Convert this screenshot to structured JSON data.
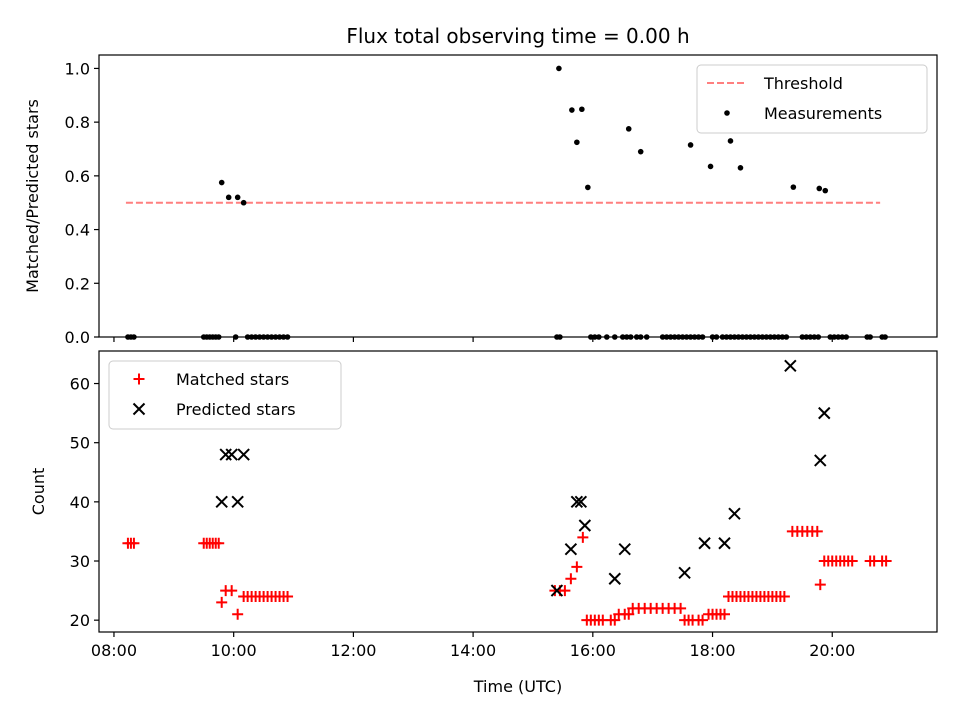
{
  "chart_data": [
    {
      "type": "scatter",
      "title": "Flux total observing time = 0.00 h",
      "xlabel": "",
      "ylabel": "Matched/Predicted stars",
      "xlim": [
        "07:45",
        "21:45"
      ],
      "ylim": [
        0,
        1.05
      ],
      "xticks": [
        "08:00",
        "10:00",
        "12:00",
        "14:00",
        "16:00",
        "18:00",
        "20:00"
      ],
      "yticks": [
        "0.0",
        "0.2",
        "0.4",
        "0.6",
        "0.8",
        "1.0"
      ],
      "show_x_tick_labels": false,
      "grid": false,
      "legend_position": "top-right",
      "series": [
        {
          "name": "Threshold",
          "kind": "line",
          "style": "dashed",
          "color": "#ff7f7f",
          "points": [
            [
              "08:12",
              0.5
            ],
            [
              "20:48",
              0.5
            ]
          ]
        },
        {
          "name": "Measurements",
          "kind": "points",
          "color": "#000000",
          "points": [
            [
              "08:14",
              0
            ],
            [
              "08:17",
              0
            ],
            [
              "08:20",
              0
            ],
            [
              "09:30",
              0
            ],
            [
              "09:33",
              0
            ],
            [
              "09:36",
              0
            ],
            [
              "09:39",
              0
            ],
            [
              "09:42",
              0
            ],
            [
              "09:45",
              0
            ],
            [
              "09:48",
              0.575
            ],
            [
              "09:55",
              0.52
            ],
            [
              "10:02",
              0
            ],
            [
              "10:04",
              0.52
            ],
            [
              "10:10",
              0.5
            ],
            [
              "10:14",
              0
            ],
            [
              "10:18",
              0
            ],
            [
              "10:22",
              0
            ],
            [
              "10:26",
              0
            ],
            [
              "10:30",
              0
            ],
            [
              "10:34",
              0
            ],
            [
              "10:38",
              0
            ],
            [
              "10:42",
              0
            ],
            [
              "10:46",
              0
            ],
            [
              "10:50",
              0
            ],
            [
              "10:54",
              0
            ],
            [
              "15:24",
              0
            ],
            [
              "15:27",
              0
            ],
            [
              "15:26",
              1.0
            ],
            [
              "15:39",
              0.845
            ],
            [
              "15:44",
              0.725
            ],
            [
              "15:49",
              0.848
            ],
            [
              "15:55",
              0.557
            ],
            [
              "15:58",
              0
            ],
            [
              "16:02",
              0
            ],
            [
              "16:06",
              0
            ],
            [
              "16:14",
              0
            ],
            [
              "16:22",
              0
            ],
            [
              "16:30",
              0
            ],
            [
              "16:34",
              0
            ],
            [
              "16:38",
              0
            ],
            [
              "16:44",
              0
            ],
            [
              "16:48",
              0
            ],
            [
              "16:54",
              0
            ],
            [
              "16:36",
              0.775
            ],
            [
              "16:48",
              0.69
            ],
            [
              "17:10",
              0
            ],
            [
              "17:14",
              0
            ],
            [
              "17:18",
              0
            ],
            [
              "17:22",
              0
            ],
            [
              "17:26",
              0
            ],
            [
              "17:30",
              0
            ],
            [
              "17:34",
              0
            ],
            [
              "17:38",
              0
            ],
            [
              "17:42",
              0
            ],
            [
              "17:46",
              0
            ],
            [
              "17:50",
              0
            ],
            [
              "17:38",
              0.715
            ],
            [
              "17:58",
              0.635
            ],
            [
              "18:00",
              0
            ],
            [
              "18:04",
              0
            ],
            [
              "18:10",
              0
            ],
            [
              "18:14",
              0
            ],
            [
              "18:18",
              0
            ],
            [
              "18:22",
              0
            ],
            [
              "18:26",
              0
            ],
            [
              "18:30",
              0
            ],
            [
              "18:34",
              0
            ],
            [
              "18:38",
              0
            ],
            [
              "18:42",
              0
            ],
            [
              "18:46",
              0
            ],
            [
              "18:50",
              0
            ],
            [
              "18:54",
              0
            ],
            [
              "18:58",
              0
            ],
            [
              "19:02",
              0
            ],
            [
              "19:06",
              0
            ],
            [
              "19:10",
              0
            ],
            [
              "19:14",
              0
            ],
            [
              "18:18",
              0.73
            ],
            [
              "18:28",
              0.63
            ],
            [
              "19:30",
              0
            ],
            [
              "19:34",
              0
            ],
            [
              "19:38",
              0
            ],
            [
              "19:42",
              0
            ],
            [
              "19:46",
              0
            ],
            [
              "19:21",
              0.558
            ],
            [
              "19:47",
              0.553
            ],
            [
              "19:53",
              0.545
            ],
            [
              "19:58",
              0
            ],
            [
              "20:02",
              0
            ],
            [
              "20:06",
              0
            ],
            [
              "20:10",
              0
            ],
            [
              "20:14",
              0
            ],
            [
              "20:35",
              0
            ],
            [
              "20:38",
              0
            ],
            [
              "20:50",
              0
            ],
            [
              "20:53",
              0
            ]
          ]
        }
      ]
    },
    {
      "type": "scatter",
      "title": "",
      "xlabel": "Time (UTC)",
      "ylabel": "Count",
      "xlim": [
        "07:45",
        "21:45"
      ],
      "ylim": [
        18,
        65.5
      ],
      "xticks": [
        "08:00",
        "10:00",
        "12:00",
        "14:00",
        "16:00",
        "18:00",
        "20:00"
      ],
      "yticks": [
        "20",
        "30",
        "40",
        "50",
        "60"
      ],
      "show_x_tick_labels": true,
      "grid": false,
      "legend_position": "top-left",
      "series": [
        {
          "name": "Matched stars",
          "kind": "plus",
          "color": "#ff0000",
          "points": [
            [
              "08:14",
              33
            ],
            [
              "08:17",
              33
            ],
            [
              "08:20",
              33
            ],
            [
              "09:30",
              33
            ],
            [
              "09:33",
              33
            ],
            [
              "09:36",
              33
            ],
            [
              "09:39",
              33
            ],
            [
              "09:42",
              33
            ],
            [
              "09:45",
              33
            ],
            [
              "09:48",
              23
            ],
            [
              "09:52",
              25
            ],
            [
              "09:58",
              25
            ],
            [
              "10:04",
              21
            ],
            [
              "10:10",
              24
            ],
            [
              "10:14",
              24
            ],
            [
              "10:18",
              24
            ],
            [
              "10:22",
              24
            ],
            [
              "10:26",
              24
            ],
            [
              "10:30",
              24
            ],
            [
              "10:34",
              24
            ],
            [
              "10:38",
              24
            ],
            [
              "10:42",
              24
            ],
            [
              "10:46",
              24
            ],
            [
              "10:50",
              24
            ],
            [
              "10:54",
              24
            ],
            [
              "15:22",
              25
            ],
            [
              "15:27",
              25
            ],
            [
              "15:32",
              25
            ],
            [
              "15:38",
              27
            ],
            [
              "15:44",
              29
            ],
            [
              "15:50",
              34
            ],
            [
              "15:54",
              20
            ],
            [
              "15:58",
              20
            ],
            [
              "16:02",
              20
            ],
            [
              "16:06",
              20
            ],
            [
              "16:10",
              20
            ],
            [
              "16:18",
              20
            ],
            [
              "16:22",
              20
            ],
            [
              "16:26",
              21
            ],
            [
              "16:32",
              21
            ],
            [
              "16:36",
              21
            ],
            [
              "16:40",
              22
            ],
            [
              "16:46",
              22
            ],
            [
              "16:52",
              22
            ],
            [
              "16:58",
              22
            ],
            [
              "17:04",
              22
            ],
            [
              "17:10",
              22
            ],
            [
              "17:16",
              22
            ],
            [
              "17:22",
              22
            ],
            [
              "17:28",
              22
            ],
            [
              "17:32",
              20
            ],
            [
              "17:36",
              20
            ],
            [
              "17:40",
              20
            ],
            [
              "17:46",
              20
            ],
            [
              "17:50",
              20
            ],
            [
              "17:56",
              21
            ],
            [
              "18:00",
              21
            ],
            [
              "18:04",
              21
            ],
            [
              "18:08",
              21
            ],
            [
              "18:12",
              21
            ],
            [
              "18:16",
              24
            ],
            [
              "18:20",
              24
            ],
            [
              "18:24",
              24
            ],
            [
              "18:28",
              24
            ],
            [
              "18:32",
              24
            ],
            [
              "18:36",
              24
            ],
            [
              "18:40",
              24
            ],
            [
              "18:44",
              24
            ],
            [
              "18:48",
              24
            ],
            [
              "18:52",
              24
            ],
            [
              "18:56",
              24
            ],
            [
              "19:00",
              24
            ],
            [
              "19:04",
              24
            ],
            [
              "19:08",
              24
            ],
            [
              "19:12",
              24
            ],
            [
              "19:20",
              35
            ],
            [
              "19:25",
              35
            ],
            [
              "19:30",
              35
            ],
            [
              "19:35",
              35
            ],
            [
              "19:40",
              35
            ],
            [
              "19:45",
              35
            ],
            [
              "19:48",
              26
            ],
            [
              "19:52",
              30
            ],
            [
              "19:56",
              30
            ],
            [
              "20:00",
              30
            ],
            [
              "20:04",
              30
            ],
            [
              "20:08",
              30
            ],
            [
              "20:12",
              30
            ],
            [
              "20:16",
              30
            ],
            [
              "20:20",
              30
            ],
            [
              "20:38",
              30
            ],
            [
              "20:42",
              30
            ],
            [
              "20:50",
              30
            ],
            [
              "20:54",
              30
            ]
          ]
        },
        {
          "name": "Predicted stars",
          "kind": "x",
          "color": "#000000",
          "points": [
            [
              "09:48",
              40
            ],
            [
              "09:52",
              48
            ],
            [
              "09:58",
              48
            ],
            [
              "10:04",
              40
            ],
            [
              "10:10",
              48
            ],
            [
              "15:24",
              25
            ],
            [
              "15:38",
              32
            ],
            [
              "15:44",
              40
            ],
            [
              "15:48",
              40
            ],
            [
              "15:52",
              36
            ],
            [
              "16:22",
              27
            ],
            [
              "16:32",
              32
            ],
            [
              "17:32",
              28
            ],
            [
              "17:52",
              33
            ],
            [
              "18:12",
              33
            ],
            [
              "18:22",
              38
            ],
            [
              "19:18",
              63
            ],
            [
              "19:48",
              47
            ],
            [
              "19:52",
              55
            ]
          ]
        }
      ]
    }
  ]
}
